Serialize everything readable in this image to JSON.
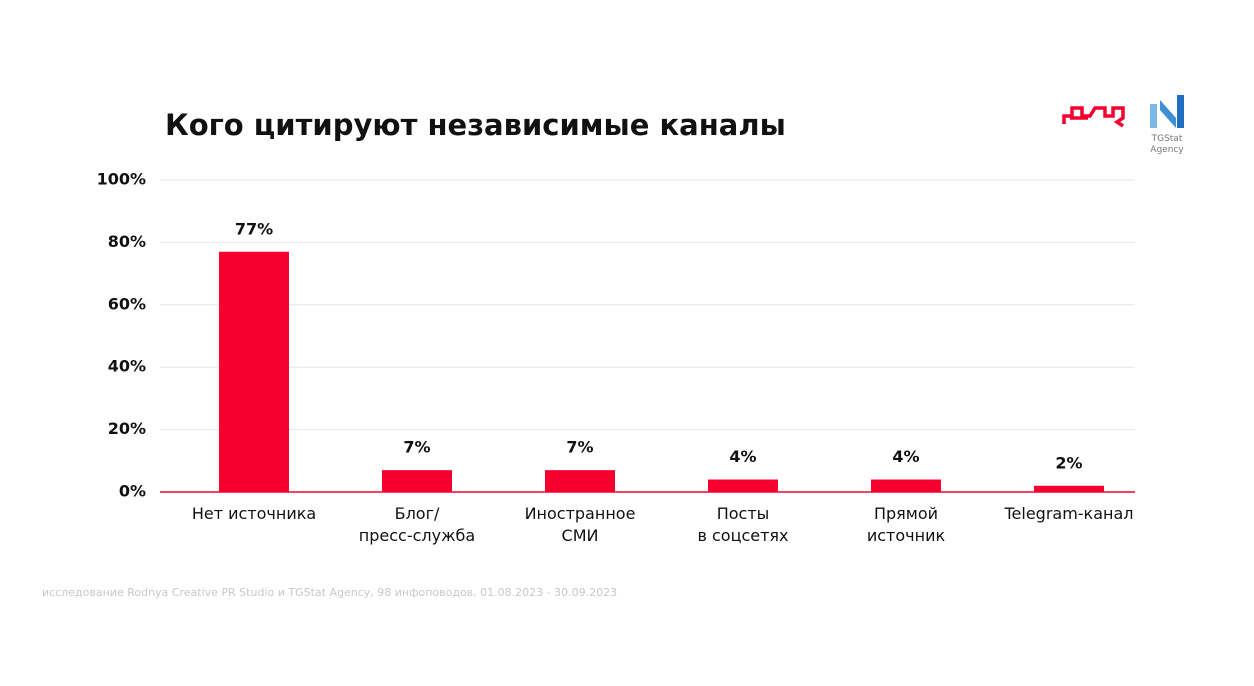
{
  "chart_data": {
    "type": "bar",
    "title": "Кого цитируют независимые каналы",
    "categories": [
      "Нет источника",
      "Блог/\nпресс-служба",
      "Иностранное\nСМИ",
      "Посты\nв соцсетях",
      "Прямой\nисточник",
      "Telegram-канал"
    ],
    "values": [
      77,
      7,
      7,
      4,
      4,
      2
    ],
    "value_labels": [
      "77%",
      "7%",
      "7%",
      "4%",
      "4%",
      "2%"
    ],
    "color": "#f5002f",
    "ylim": [
      0,
      100
    ],
    "yticks": [
      {
        "value": 0,
        "label": "0%"
      },
      {
        "value": 20,
        "label": "20%"
      },
      {
        "value": 40,
        "label": "40%"
      },
      {
        "value": 60,
        "label": "60%"
      },
      {
        "value": 80,
        "label": "80%"
      },
      {
        "value": 100,
        "label": "100%"
      }
    ],
    "grid": true,
    "footnote": "исследование Rodnya Creative PR Studio и TGStat Agency, 98 инфоповодов, 01.08.2023 - 30.09.2023",
    "logo_text": "TGStat\nAgency"
  }
}
